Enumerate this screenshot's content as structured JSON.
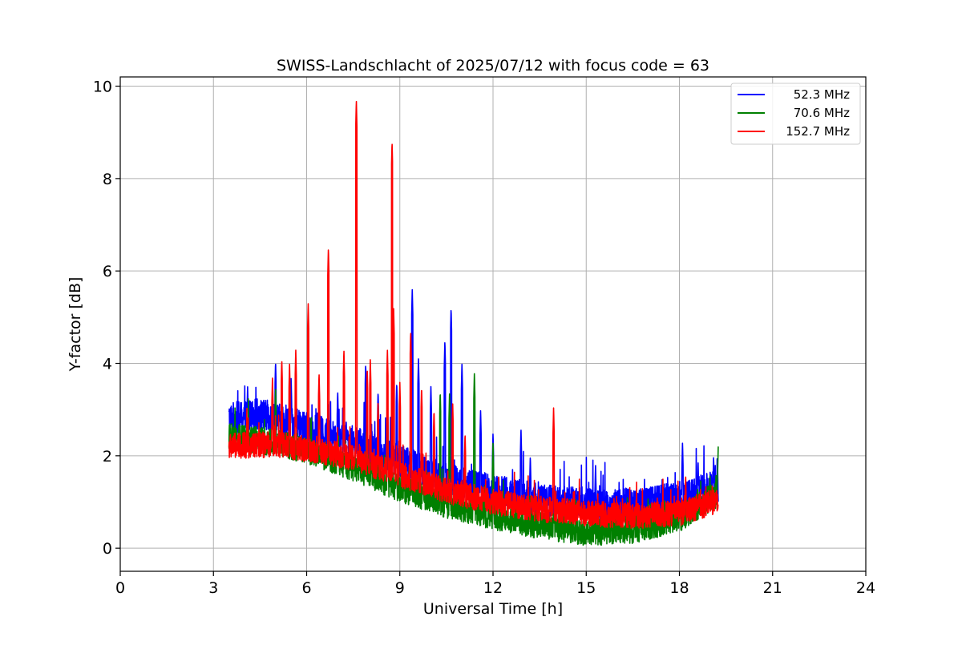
{
  "chart_data": {
    "type": "line",
    "title": "SWISS-Landschlacht of 2025/07/12 with focus code = 63",
    "xlabel": "Universal Time [h]",
    "ylabel": "Y-factor [dB]",
    "xlim": [
      0,
      24
    ],
    "ylim": [
      -0.5,
      10.2
    ],
    "xticks": [
      0,
      3,
      6,
      9,
      12,
      15,
      18,
      21,
      24
    ],
    "yticks": [
      0,
      2,
      4,
      6,
      8,
      10
    ],
    "grid": true,
    "legend_position": "top-right",
    "x_range_data": [
      3.5,
      19.25
    ],
    "series": [
      {
        "name": "52.3 MHz",
        "color": "#0000ff",
        "baseline": [
          [
            3.5,
            2.8
          ],
          [
            4.5,
            2.9
          ],
          [
            6,
            2.6
          ],
          [
            7.5,
            2.3
          ],
          [
            9,
            1.9
          ],
          [
            10.5,
            1.5
          ],
          [
            12,
            1.25
          ],
          [
            13.5,
            1.05
          ],
          [
            15,
            0.95
          ],
          [
            16.5,
            0.95
          ],
          [
            18,
            1.1
          ],
          [
            19.25,
            1.35
          ]
        ],
        "noise": 0.35,
        "peaks": [
          [
            4.1,
            3.5
          ],
          [
            5.0,
            4.05
          ],
          [
            5.5,
            3.7
          ],
          [
            6.4,
            3.55
          ],
          [
            7.0,
            3.4
          ],
          [
            7.9,
            4.0
          ],
          [
            8.3,
            3.4
          ],
          [
            8.9,
            3.6
          ],
          [
            9.4,
            5.6
          ],
          [
            9.6,
            4.1
          ],
          [
            10.0,
            3.5
          ],
          [
            10.45,
            4.5
          ],
          [
            10.65,
            5.2
          ],
          [
            11.0,
            4.0
          ],
          [
            11.6,
            3.0
          ],
          [
            12.0,
            2.5
          ],
          [
            12.9,
            2.6
          ],
          [
            13.2,
            2.0
          ],
          [
            15.3,
            1.8
          ],
          [
            18.1,
            2.3
          ],
          [
            18.6,
            1.9
          ],
          [
            19.1,
            2.0
          ]
        ]
      },
      {
        "name": "70.6 MHz",
        "color": "#008000",
        "baseline": [
          [
            3.5,
            2.4
          ],
          [
            5,
            2.3
          ],
          [
            6.5,
            2.0
          ],
          [
            7.5,
            1.75
          ],
          [
            9,
            1.3
          ],
          [
            10.5,
            0.95
          ],
          [
            12,
            0.7
          ],
          [
            13.5,
            0.5
          ],
          [
            15,
            0.35
          ],
          [
            16.5,
            0.4
          ],
          [
            18,
            0.65
          ],
          [
            19.25,
            1.2
          ]
        ],
        "noise": 0.3,
        "peaks": [
          [
            5.0,
            3.5
          ],
          [
            8.6,
            3.2
          ],
          [
            10.3,
            3.4
          ],
          [
            10.6,
            3.35
          ],
          [
            11.4,
            3.8
          ],
          [
            12.0,
            2.3
          ],
          [
            19.25,
            2.2
          ]
        ]
      },
      {
        "name": "152.7 MHz",
        "color": "#ff0000",
        "baseline": [
          [
            3.5,
            2.2
          ],
          [
            5,
            2.25
          ],
          [
            6.5,
            2.1
          ],
          [
            7.5,
            1.95
          ],
          [
            9,
            1.6
          ],
          [
            10.5,
            1.25
          ],
          [
            12,
            1.0
          ],
          [
            13.5,
            0.85
          ],
          [
            15,
            0.75
          ],
          [
            16.5,
            0.7
          ],
          [
            18,
            0.75
          ],
          [
            19.25,
            1.05
          ]
        ],
        "noise": 0.28,
        "peaks": [
          [
            4.9,
            3.7
          ],
          [
            5.2,
            4.1
          ],
          [
            5.45,
            4.0
          ],
          [
            5.65,
            4.3
          ],
          [
            6.05,
            5.3
          ],
          [
            6.4,
            3.8
          ],
          [
            6.7,
            6.5
          ],
          [
            7.2,
            4.3
          ],
          [
            7.6,
            9.7
          ],
          [
            7.95,
            3.9
          ],
          [
            8.05,
            4.1
          ],
          [
            8.3,
            3.2
          ],
          [
            8.6,
            4.3
          ],
          [
            8.75,
            8.8
          ],
          [
            8.8,
            5.2
          ],
          [
            9.0,
            3.6
          ],
          [
            9.35,
            4.7
          ],
          [
            9.7,
            3.5
          ],
          [
            10.1,
            3.0
          ],
          [
            10.7,
            3.2
          ],
          [
            11.1,
            2.5
          ],
          [
            13.95,
            3.05
          ],
          [
            16.0,
            1.0
          ],
          [
            18.2,
            1.6
          ]
        ]
      }
    ]
  }
}
